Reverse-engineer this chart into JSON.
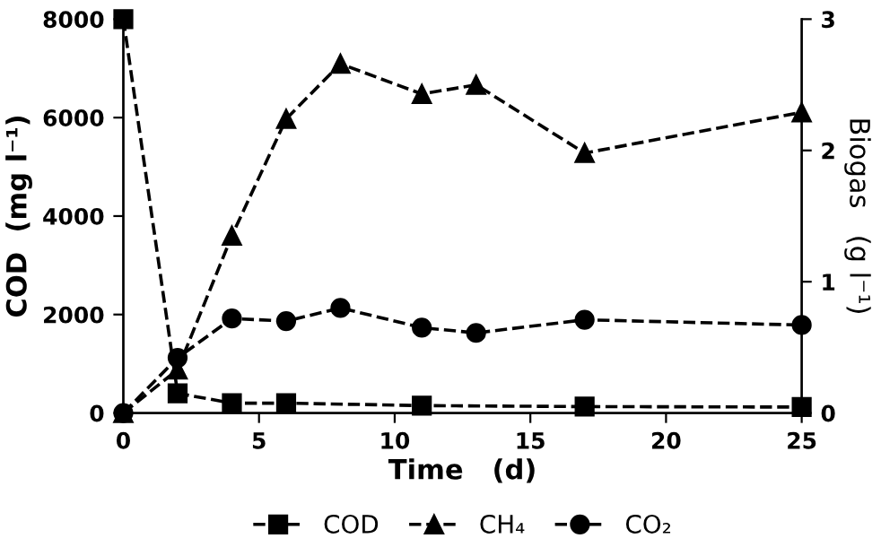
{
  "chart_data": {
    "type": "line",
    "xlabel": "Time   (d)",
    "ylabel": "COD  (mg l⁻¹)",
    "y2label": "Biogas   (g l⁻¹)",
    "x": [
      0,
      2,
      4,
      6,
      8,
      11,
      13,
      17,
      25
    ],
    "series": [
      {
        "name": "COD",
        "color": "#000000",
        "marker": "square",
        "values": [
          8000,
          400,
          200,
          200,
          null,
          150,
          null,
          130,
          120
        ],
        "x": [
          0,
          2,
          4,
          6,
          8,
          11,
          13,
          17,
          25
        ]
      },
      {
        "name": "CH₄",
        "color": "#000000",
        "marker": "triangle",
        "axis": "y2",
        "values": [
          0,
          0.33,
          1.35,
          2.24,
          2.66,
          2.43,
          2.5,
          1.98,
          2.29
        ]
      },
      {
        "name": "CO₂",
        "color": "#000000",
        "marker": "circle",
        "axis": "y2",
        "values": [
          0,
          0.42,
          0.72,
          0.7,
          0.8,
          0.65,
          0.61,
          0.71,
          0.67
        ]
      }
    ],
    "xlim": [
      0,
      25
    ],
    "xticks": [
      0,
      5,
      10,
      15,
      20,
      25
    ],
    "ylim": [
      0,
      8000
    ],
    "yticks": [
      0,
      2000,
      4000,
      6000,
      8000
    ],
    "y2lim": [
      0,
      3
    ],
    "y2ticks": [
      0,
      1,
      2,
      3
    ],
    "line_style": "dashed",
    "grid": false,
    "legend": "bottom"
  }
}
